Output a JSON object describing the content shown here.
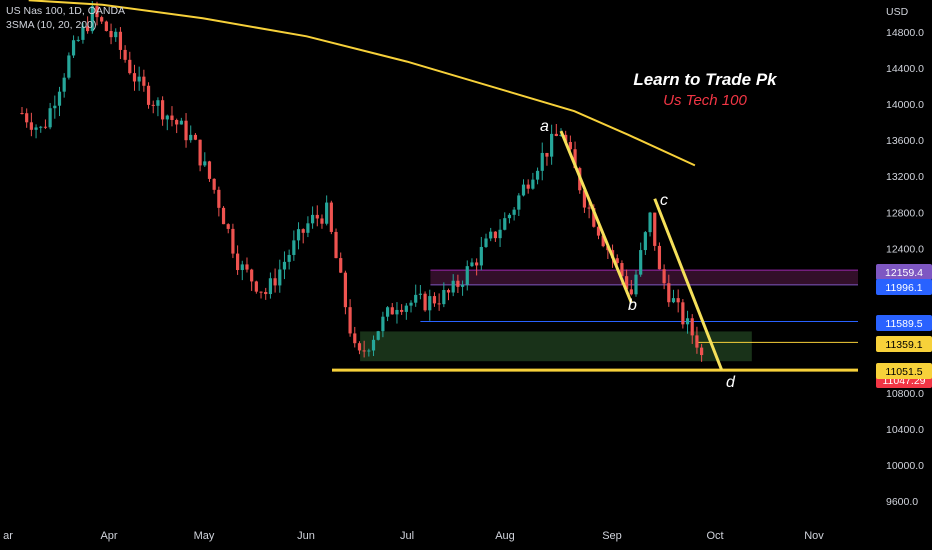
{
  "legend": {
    "symbol": "US Nas 100, 1D, OANDA",
    "indicator": "3SMA (10, 20, 200)"
  },
  "branding": {
    "title": "Learn to Trade Pk",
    "subtitle": "Us Tech 100"
  },
  "currency": "USD",
  "pattern_labels": [
    "a",
    "b",
    "c",
    "d"
  ],
  "colors": {
    "background": "#000000",
    "up_candle": "#26a69a",
    "down_candle": "#ef5350",
    "sma200": "#f7d13a",
    "pattern_line": "#f5e05a",
    "support_zone": "#1d3b1d",
    "resistance_zone": "#3b1230",
    "level_line": "#2962ff"
  },
  "chart_data": {
    "type": "candlestick",
    "y_axis_ticks": [
      "14800.0",
      "14400.0",
      "14000.0",
      "13600.0",
      "13200.0",
      "12800.0",
      "12400.0",
      "10800.0",
      "10400.0",
      "10000.0",
      "9600.0"
    ],
    "x_axis_ticks": [
      "ar",
      "Apr",
      "May",
      "Jun",
      "Jul",
      "Aug",
      "Sep",
      "Oct",
      "Nov"
    ],
    "ylim": [
      9400,
      15000
    ],
    "price_labels": [
      {
        "value": "12159.4",
        "color": "#7e57c2",
        "text_color": "#ffffff"
      },
      {
        "value": "11996.1",
        "color": "#2962ff",
        "text_color": "#ffffff"
      },
      {
        "value": "11589.5",
        "color": "#2962ff",
        "text_color": "#ffffff"
      },
      {
        "value": "11359.1",
        "color": "#f7d13a",
        "text_color": "#000000"
      },
      {
        "value": "11051.5",
        "color": "#f7d13a",
        "text_color": "#000000"
      },
      {
        "value": "11047.29",
        "color": "#f23645",
        "text_color": "#ffffff"
      }
    ],
    "levels": [
      {
        "name": "resistance-top",
        "value": 12159.4
      },
      {
        "name": "resistance-bottom",
        "value": 11996.1
      },
      {
        "name": "blue-level",
        "value": 11589.5
      },
      {
        "name": "yellow-level-upper",
        "value": 11359.1
      },
      {
        "name": "support-line",
        "value": 11051.5
      }
    ],
    "pattern_points": [
      {
        "label": "a",
        "date": "2022-08-16",
        "value": 13700
      },
      {
        "label": "b",
        "date": "2022-09-06",
        "value": 11800
      },
      {
        "label": "c",
        "date": "2022-09-13",
        "value": 12950
      },
      {
        "label": "d",
        "date": "2022-10-03",
        "value": 11051.5
      }
    ],
    "sma200": [
      {
        "date": "2022-03-10",
        "value": 15150
      },
      {
        "date": "2022-04-01",
        "value": 15100
      },
      {
        "date": "2022-05-01",
        "value": 14950
      },
      {
        "date": "2022-06-01",
        "value": 14750
      },
      {
        "date": "2022-07-01",
        "value": 14470
      },
      {
        "date": "2022-08-01",
        "value": 14130
      },
      {
        "date": "2022-08-20",
        "value": 13920
      },
      {
        "date": "2022-09-05",
        "value": 13660
      },
      {
        "date": "2022-09-25",
        "value": 13320
      }
    ],
    "price_path": [
      {
        "date": "2022-03-08",
        "value": 13900
      },
      {
        "date": "2022-03-14",
        "value": 13700
      },
      {
        "date": "2022-03-22",
        "value": 14500
      },
      {
        "date": "2022-03-29",
        "value": 15000
      },
      {
        "date": "2022-04-05",
        "value": 14700
      },
      {
        "date": "2022-04-12",
        "value": 14200
      },
      {
        "date": "2022-04-20",
        "value": 13900
      },
      {
        "date": "2022-04-28",
        "value": 13600
      },
      {
        "date": "2022-05-05",
        "value": 13000
      },
      {
        "date": "2022-05-12",
        "value": 12200
      },
      {
        "date": "2022-05-20",
        "value": 11900
      },
      {
        "date": "2022-05-26",
        "value": 12300
      },
      {
        "date": "2022-06-02",
        "value": 12700
      },
      {
        "date": "2022-06-07",
        "value": 12800
      },
      {
        "date": "2022-06-13",
        "value": 11700
      },
      {
        "date": "2022-06-16",
        "value": 11150
      },
      {
        "date": "2022-06-22",
        "value": 11500
      },
      {
        "date": "2022-06-28",
        "value": 11800
      },
      {
        "date": "2022-07-06",
        "value": 11800
      },
      {
        "date": "2022-07-14",
        "value": 11900
      },
      {
        "date": "2022-07-22",
        "value": 12300
      },
      {
        "date": "2022-08-01",
        "value": 12800
      },
      {
        "date": "2022-08-08",
        "value": 13300
      },
      {
        "date": "2022-08-16",
        "value": 13700
      },
      {
        "date": "2022-08-23",
        "value": 12950
      },
      {
        "date": "2022-08-30",
        "value": 12400
      },
      {
        "date": "2022-09-06",
        "value": 11900
      },
      {
        "date": "2022-09-12",
        "value": 12800
      },
      {
        "date": "2022-09-14",
        "value": 12150
      },
      {
        "date": "2022-09-20",
        "value": 11700
      },
      {
        "date": "2022-09-26",
        "value": 11350
      },
      {
        "date": "2022-09-28",
        "value": 11047.29
      }
    ]
  }
}
